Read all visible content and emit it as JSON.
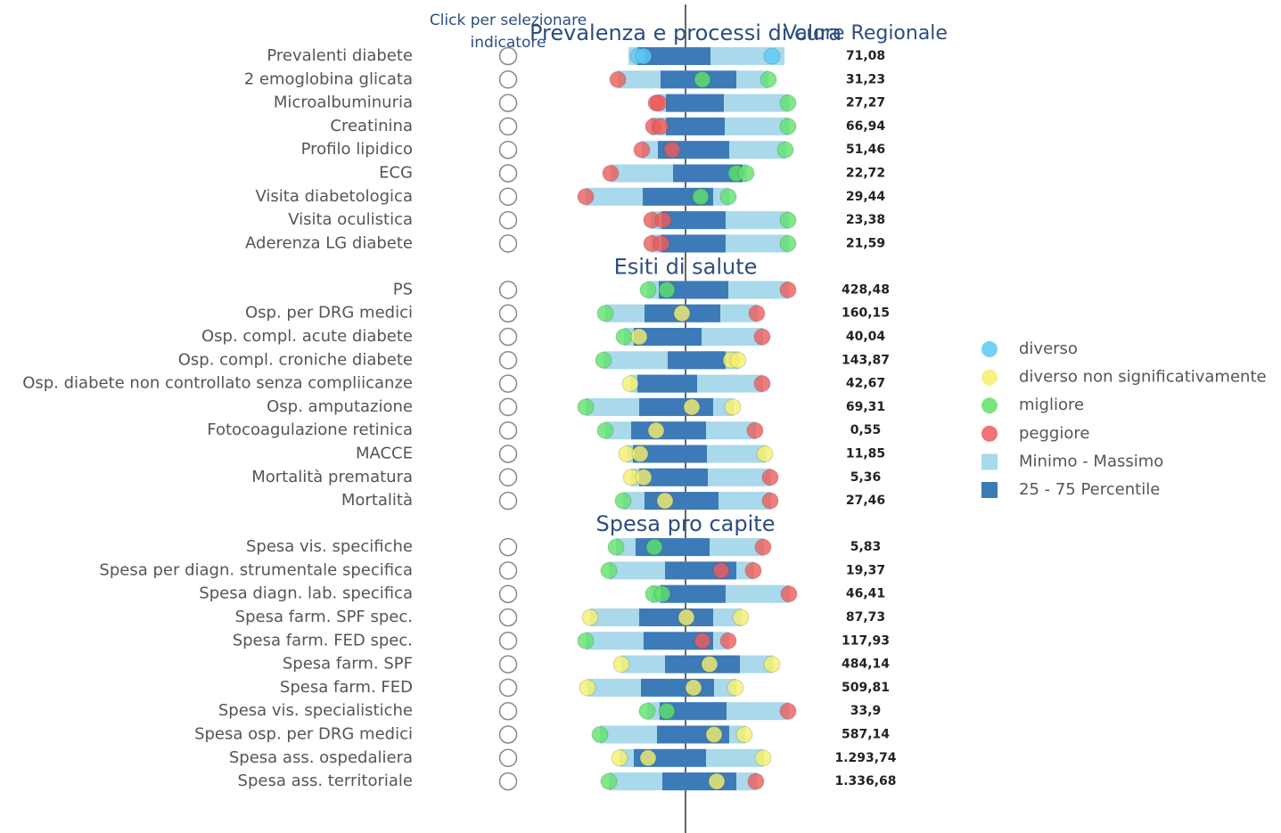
{
  "header": {
    "click_label": [
      "Click per selezionare",
      "indicatore"
    ],
    "value_header": "Valore Regionale"
  },
  "chart_data": {
    "type": "range-dot",
    "xlim": [
      -12,
      12
    ],
    "range_color": "#a9d9ea",
    "iqr_color": "#3d7ab8",
    "legend": [
      {
        "name": "diverso",
        "color": "#5cc9f5",
        "shape": "circle"
      },
      {
        "name": "diverso non significativamente",
        "color": "#f6f06b",
        "shape": "circle"
      },
      {
        "name": "migliore",
        "color": "#5fe26a",
        "shape": "circle"
      },
      {
        "name": "peggiore",
        "color": "#ee5b5b",
        "shape": "circle"
      },
      {
        "name": "Minimo - Massimo",
        "color": "#a9d9ea",
        "shape": "square"
      },
      {
        "name": "25 - 75 Percentile",
        "color": "#3d7ab8",
        "shape": "square"
      }
    ],
    "sections": [
      {
        "title": "Prevalenza e processi di cura",
        "rows": [
          {
            "label": "Prevalenti diabete",
            "value": "71,08",
            "min": -6.4,
            "q1": -5.4,
            "q3": 2.8,
            "max": 11.1,
            "dots": [
              {
                "x": -5.3,
                "color": "#5cc9f5"
              },
              {
                "x": -4.7,
                "color": "#5cc9f5"
              },
              {
                "x": 9.7,
                "color": "#5cc9f5"
              }
            ]
          },
          {
            "label": "2 emoglobina glicata",
            "value": "31,23",
            "min": -7.6,
            "q1": -2.8,
            "q3": 5.7,
            "max": 9.3,
            "dots": [
              {
                "x": -7.6,
                "color": "#ee5b5b"
              },
              {
                "x": 1.9,
                "color": "#5fe26a"
              },
              {
                "x": 9.3,
                "color": "#5fe26a"
              }
            ]
          },
          {
            "label": "Microalbuminuria",
            "value": "27,27",
            "min": -3.2,
            "q1": -2.2,
            "q3": 4.3,
            "max": 11.6,
            "dots": [
              {
                "x": -3.3,
                "color": "#ee5b5b"
              },
              {
                "x": -3.0,
                "color": "#ee5b5b"
              },
              {
                "x": 11.5,
                "color": "#5fe26a"
              }
            ]
          },
          {
            "label": "Creatinina",
            "value": "66,94",
            "min": -3.9,
            "q1": -2.2,
            "q3": 4.4,
            "max": 11.6,
            "dots": [
              {
                "x": -3.6,
                "color": "#ee5b5b"
              },
              {
                "x": -2.8,
                "color": "#ee5b5b"
              },
              {
                "x": 11.5,
                "color": "#5fe26a"
              }
            ]
          },
          {
            "label": "Profilo lipidico",
            "value": "51,46",
            "min": -4.9,
            "q1": -3.1,
            "q3": 4.9,
            "max": 11.3,
            "dots": [
              {
                "x": -4.9,
                "color": "#ee5b5b"
              },
              {
                "x": -1.5,
                "color": "#ee5b5b"
              },
              {
                "x": 11.2,
                "color": "#5fe26a"
              }
            ]
          },
          {
            "label": "ECG",
            "value": "22,72",
            "min": -8.4,
            "q1": -1.4,
            "q3": 6.4,
            "max": 6.9,
            "dots": [
              {
                "x": -8.4,
                "color": "#ee5b5b"
              },
              {
                "x": 5.7,
                "color": "#5fe26a"
              },
              {
                "x": 6.8,
                "color": "#5fe26a"
              }
            ]
          },
          {
            "label": "Visita diabetologica",
            "value": "29,44",
            "min": -11.2,
            "q1": -4.8,
            "q3": 3.1,
            "max": 4.9,
            "dots": [
              {
                "x": -11.2,
                "color": "#ee5b5b"
              },
              {
                "x": 1.7,
                "color": "#5fe26a"
              },
              {
                "x": 4.8,
                "color": "#5fe26a"
              }
            ]
          },
          {
            "label": "Visita oculistica",
            "value": "23,38",
            "min": -3.9,
            "q1": -2.7,
            "q3": 4.5,
            "max": 11.6,
            "dots": [
              {
                "x": -3.8,
                "color": "#ee5b5b"
              },
              {
                "x": -2.5,
                "color": "#ee5b5b"
              },
              {
                "x": 11.5,
                "color": "#5fe26a"
              }
            ]
          },
          {
            "label": "Aderenza LG diabete",
            "value": "21,59",
            "min": -3.9,
            "q1": -2.7,
            "q3": 4.5,
            "max": 11.6,
            "dots": [
              {
                "x": -3.8,
                "color": "#ee5b5b"
              },
              {
                "x": -2.7,
                "color": "#ee5b5b"
              },
              {
                "x": 11.5,
                "color": "#5fe26a"
              }
            ]
          }
        ]
      },
      {
        "title": "Esiti di salute",
        "rows": [
          {
            "label": "PS",
            "value": "428,48",
            "min": -4.3,
            "q1": -3.0,
            "q3": 4.8,
            "max": 11.6,
            "dots": [
              {
                "x": -4.2,
                "color": "#5fe26a"
              },
              {
                "x": -2.1,
                "color": "#5fe26a"
              },
              {
                "x": 11.5,
                "color": "#ee5b5b"
              }
            ]
          },
          {
            "label": "Osp. per DRG medici",
            "value": "160,15",
            "min": -9.0,
            "q1": -4.6,
            "q3": 3.9,
            "max": 8.1,
            "dots": [
              {
                "x": -9.0,
                "color": "#5fe26a"
              },
              {
                "x": -0.4,
                "color": "#f6f06b"
              },
              {
                "x": 8.0,
                "color": "#ee5b5b"
              }
            ]
          },
          {
            "label": "Osp. compl. acute diabete",
            "value": "40,04",
            "min": -6.9,
            "q1": -5.8,
            "q3": 1.8,
            "max": 8.7,
            "dots": [
              {
                "x": -6.9,
                "color": "#5fe26a"
              },
              {
                "x": -5.2,
                "color": "#f6f06b"
              },
              {
                "x": 8.6,
                "color": "#ee5b5b"
              }
            ]
          },
          {
            "label": "Osp. compl. croniche diabete",
            "value": "143,87",
            "min": -9.2,
            "q1": -2.0,
            "q3": 4.5,
            "max": 6.0,
            "dots": [
              {
                "x": -9.2,
                "color": "#5fe26a"
              },
              {
                "x": 5.1,
                "color": "#f6f06b"
              },
              {
                "x": 5.9,
                "color": "#f6f06b"
              }
            ]
          },
          {
            "label": "Osp. diabete non controllato senza compliicanze",
            "value": "42,67",
            "min": -6.2,
            "q1": -5.4,
            "q3": 1.3,
            "max": 8.7,
            "dots": [
              {
                "x": -6.2,
                "color": "#f6f06b"
              },
              {
                "x": 8.6,
                "color": "#ee5b5b"
              }
            ]
          },
          {
            "label": "Osp. amputazione",
            "value": "69,31",
            "min": -11.2,
            "q1": -5.2,
            "q3": 3.1,
            "max": 5.4,
            "dots": [
              {
                "x": -11.2,
                "color": "#5fe26a"
              },
              {
                "x": 0.7,
                "color": "#f6f06b"
              },
              {
                "x": 5.3,
                "color": "#f6f06b"
              }
            ]
          },
          {
            "label": "Fotocoagulazione retinica",
            "value": "0,55",
            "min": -9.0,
            "q1": -6.1,
            "q3": 2.3,
            "max": 7.9,
            "dots": [
              {
                "x": -9.0,
                "color": "#5fe26a"
              },
              {
                "x": -3.3,
                "color": "#f6f06b"
              },
              {
                "x": 7.8,
                "color": "#ee5b5b"
              }
            ]
          },
          {
            "label": "MACCE",
            "value": "11,85",
            "min": -6.6,
            "q1": -5.9,
            "q3": 2.4,
            "max": 9.0,
            "dots": [
              {
                "x": -6.6,
                "color": "#f6f06b"
              },
              {
                "x": -5.1,
                "color": "#f6f06b"
              },
              {
                "x": 8.9,
                "color": "#f6f06b"
              }
            ]
          },
          {
            "label": "Mortalità prematura",
            "value": "5,36",
            "min": -6.1,
            "q1": -5.2,
            "q3": 2.5,
            "max": 9.6,
            "dots": [
              {
                "x": -6.1,
                "color": "#f6f06b"
              },
              {
                "x": -4.7,
                "color": "#f6f06b"
              },
              {
                "x": 9.5,
                "color": "#ee5b5b"
              }
            ]
          },
          {
            "label": "Mortalità",
            "value": "27,46",
            "min": -7.0,
            "q1": -4.6,
            "q3": 3.7,
            "max": 9.6,
            "dots": [
              {
                "x": -7.0,
                "color": "#5fe26a"
              },
              {
                "x": -2.3,
                "color": "#f6f06b"
              },
              {
                "x": 9.5,
                "color": "#ee5b5b"
              }
            ]
          }
        ]
      },
      {
        "title": "Spesa pro capite",
        "rows": [
          {
            "label": "Spesa vis. specifiche",
            "value": "5,83",
            "min": -7.8,
            "q1": -5.6,
            "q3": 2.7,
            "max": 8.8,
            "dots": [
              {
                "x": -7.8,
                "color": "#5fe26a"
              },
              {
                "x": -3.5,
                "color": "#5fe26a"
              },
              {
                "x": 8.7,
                "color": "#ee5b5b"
              }
            ]
          },
          {
            "label": "Spesa per diagn. strumentale specifica",
            "value": "19,37",
            "min": -8.6,
            "q1": -2.3,
            "q3": 5.7,
            "max": 7.7,
            "dots": [
              {
                "x": -8.6,
                "color": "#5fe26a"
              },
              {
                "x": 4.0,
                "color": "#ee5b5b"
              },
              {
                "x": 7.6,
                "color": "#ee5b5b"
              }
            ]
          },
          {
            "label": "Spesa diagn. lab. specifica",
            "value": "46,41",
            "min": -3.9,
            "q1": -2.8,
            "q3": 4.5,
            "max": 11.7,
            "dots": [
              {
                "x": -3.6,
                "color": "#5fe26a"
              },
              {
                "x": -2.6,
                "color": "#5fe26a"
              },
              {
                "x": 11.6,
                "color": "#ee5b5b"
              }
            ]
          },
          {
            "label": "Spesa farm. SPF spec.",
            "value": "87,73",
            "min": -10.7,
            "q1": -5.2,
            "q3": 3.1,
            "max": 6.3,
            "dots": [
              {
                "x": -10.7,
                "color": "#f6f06b"
              },
              {
                "x": 0.1,
                "color": "#f6f06b"
              },
              {
                "x": 6.2,
                "color": "#f6f06b"
              }
            ]
          },
          {
            "label": "Spesa farm. FED spec.",
            "value": "117,93",
            "min": -11.2,
            "q1": -4.7,
            "q3": 3.1,
            "max": 4.9,
            "dots": [
              {
                "x": -11.2,
                "color": "#5fe26a"
              },
              {
                "x": 1.9,
                "color": "#ee5b5b"
              },
              {
                "x": 4.8,
                "color": "#ee5b5b"
              }
            ]
          },
          {
            "label": "Spesa farm. SPF",
            "value": "484,14",
            "min": -7.2,
            "q1": -2.3,
            "q3": 6.1,
            "max": 9.8,
            "dots": [
              {
                "x": -7.2,
                "color": "#f6f06b"
              },
              {
                "x": 2.7,
                "color": "#f6f06b"
              },
              {
                "x": 9.7,
                "color": "#f6f06b"
              }
            ]
          },
          {
            "label": "Spesa farm. FED",
            "value": "509,81",
            "min": -11.0,
            "q1": -5.0,
            "q3": 3.2,
            "max": 5.7,
            "dots": [
              {
                "x": -11.0,
                "color": "#f6f06b"
              },
              {
                "x": 0.9,
                "color": "#f6f06b"
              },
              {
                "x": 5.6,
                "color": "#f6f06b"
              }
            ]
          },
          {
            "label": "Spesa vis. specialistiche",
            "value": "33,9",
            "min": -4.3,
            "q1": -2.9,
            "q3": 4.6,
            "max": 11.6,
            "dots": [
              {
                "x": -4.3,
                "color": "#5fe26a"
              },
              {
                "x": -2.1,
                "color": "#5fe26a"
              },
              {
                "x": 11.5,
                "color": "#ee5b5b"
              }
            ]
          },
          {
            "label": "Spesa osp. per DRG medici",
            "value": "587,14",
            "min": -9.6,
            "q1": -3.2,
            "q3": 4.9,
            "max": 6.7,
            "dots": [
              {
                "x": -9.6,
                "color": "#5fe26a"
              },
              {
                "x": 3.2,
                "color": "#f6f06b"
              },
              {
                "x": 6.6,
                "color": "#f6f06b"
              }
            ]
          },
          {
            "label": "Spesa ass. ospedaliera",
            "value": "1.293,74",
            "min": -7.4,
            "q1": -5.8,
            "q3": 2.3,
            "max": 8.8,
            "dots": [
              {
                "x": -7.4,
                "color": "#f6f06b"
              },
              {
                "x": -4.2,
                "color": "#f6f06b"
              },
              {
                "x": 8.7,
                "color": "#f6f06b"
              }
            ]
          },
          {
            "label": "Spesa ass. territoriale",
            "value": "1.336,68",
            "min": -8.6,
            "q1": -2.6,
            "q3": 5.7,
            "max": 8.0,
            "dots": [
              {
                "x": -8.6,
                "color": "#5fe26a"
              },
              {
                "x": 3.5,
                "color": "#f6f06b"
              },
              {
                "x": 7.9,
                "color": "#ee5b5b"
              }
            ]
          }
        ]
      }
    ]
  }
}
